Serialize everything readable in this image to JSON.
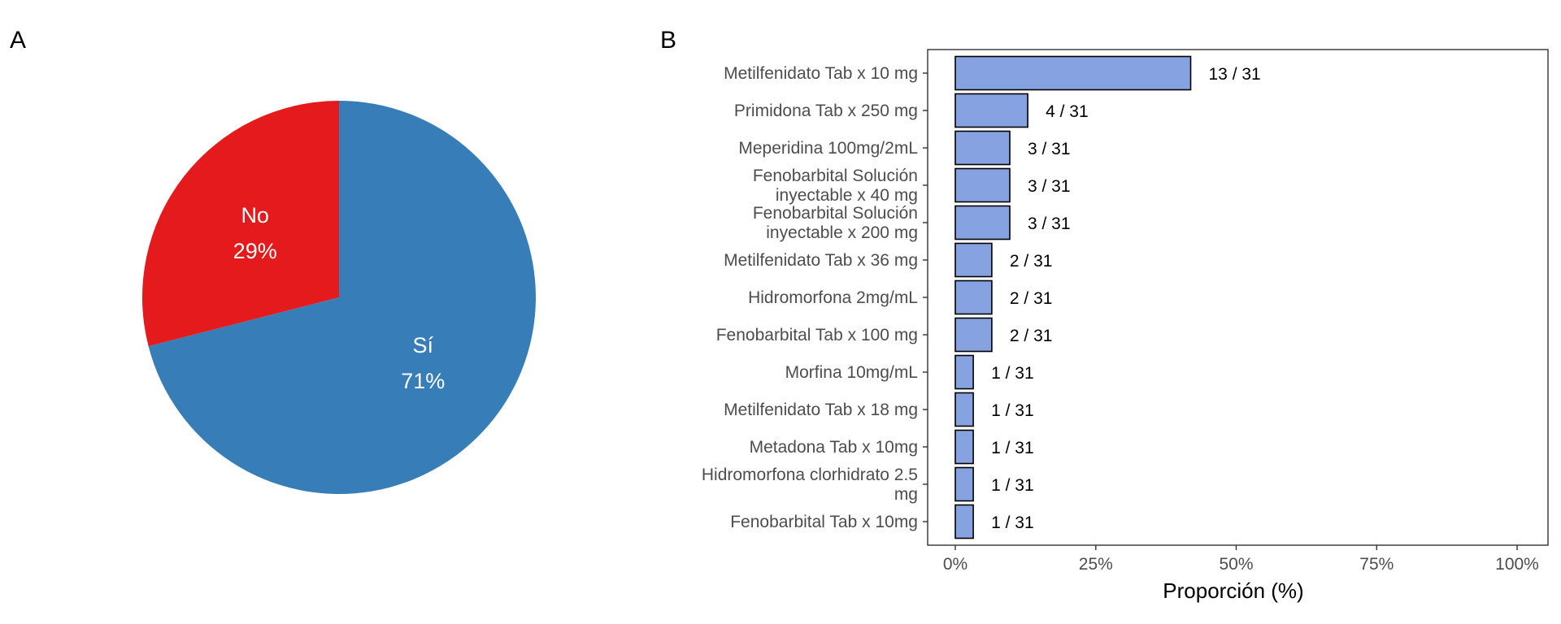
{
  "panels": {
    "a_label": "A",
    "b_label": "B"
  },
  "colors": {
    "si": "#377EB8",
    "no": "#E41A1C",
    "bar": "#86A2E0",
    "bar_outline": "#000000"
  },
  "chart_data": [
    {
      "type": "pie",
      "title": "",
      "slices": [
        {
          "name": "Sí",
          "value": 71,
          "label": "71%"
        },
        {
          "name": "No",
          "value": 29,
          "label": "29%"
        }
      ]
    },
    {
      "type": "bar",
      "orientation": "horizontal",
      "title": "",
      "xlabel": "Proporción (%)",
      "ylabel": "",
      "xlim": [
        0,
        100
      ],
      "xticks": [
        "0%",
        "25%",
        "50%",
        "75%",
        "100%"
      ],
      "grid": false,
      "categories": [
        [
          "Metilfenidato Tab x 10 mg"
        ],
        [
          "Primidona Tab x 250 mg"
        ],
        [
          "Meperidina 100mg/2mL"
        ],
        [
          "Fenobarbital Solución",
          "inyectable x 40 mg"
        ],
        [
          "Fenobarbital Solución",
          "inyectable x 200 mg"
        ],
        [
          "Metilfenidato Tab x 36 mg"
        ],
        [
          "Hidromorfona 2mg/mL"
        ],
        [
          "Fenobarbital Tab x 100 mg"
        ],
        [
          "Morfina 10mg/mL"
        ],
        [
          "Metilfenidato Tab x 18 mg"
        ],
        [
          "Metadona Tab x 10mg"
        ],
        [
          "Hidromorfona clorhidrato 2.5",
          "mg"
        ],
        [
          "Fenobarbital Tab x 10mg"
        ]
      ],
      "values": [
        41.9,
        12.9,
        9.7,
        9.7,
        9.7,
        6.5,
        6.5,
        6.5,
        3.2,
        3.2,
        3.2,
        3.2,
        3.2
      ],
      "data_labels": [
        "13 / 31",
        "4 / 31",
        "3 / 31",
        "3 / 31",
        "3 / 31",
        "2 / 31",
        "2 / 31",
        "2 / 31",
        "1 / 31",
        "1 / 31",
        "1 / 31",
        "1 / 31",
        "1 / 31"
      ]
    }
  ]
}
